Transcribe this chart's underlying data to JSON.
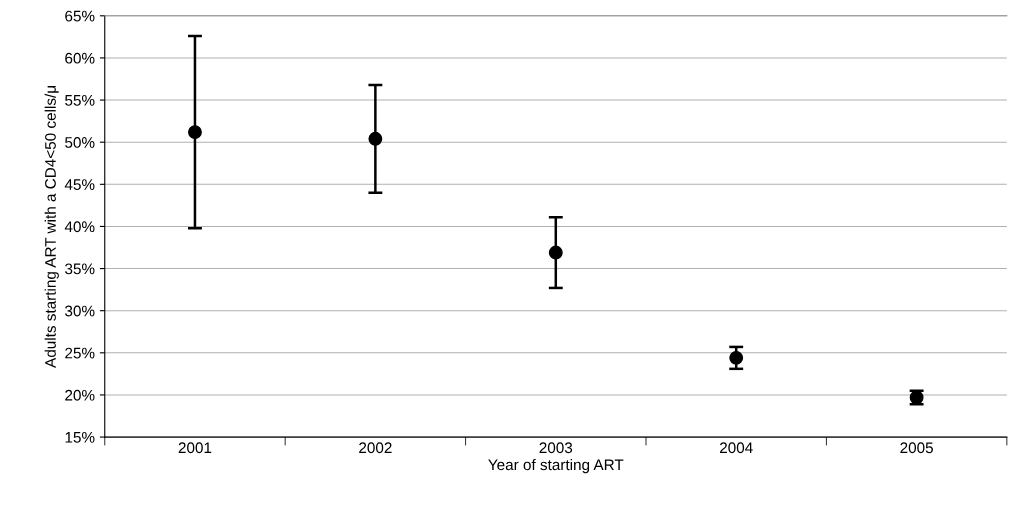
{
  "chart_data": {
    "type": "scatter",
    "xlabel": "Year of starting ART",
    "ylabel": "Adults starting ART with a CD4<50 cells/μ",
    "categories": [
      "2001",
      "2002",
      "2003",
      "2004",
      "2005"
    ],
    "values": [
      51.2,
      50.4,
      36.9,
      24.4,
      19.7
    ],
    "errors": [
      [
        39.8,
        62.6
      ],
      [
        44.0,
        56.8
      ],
      [
        32.7,
        41.1
      ],
      [
        23.1,
        25.7
      ],
      [
        18.9,
        20.5
      ]
    ],
    "color": "#000000",
    "marker": "circle",
    "ylim": [
      15,
      65
    ],
    "yticks": [
      {
        "value": 15,
        "label": "15%"
      },
      {
        "value": 20,
        "label": "20%"
      },
      {
        "value": 25,
        "label": "25%"
      },
      {
        "value": 30,
        "label": "30%"
      },
      {
        "value": 35,
        "label": "35%"
      },
      {
        "value": 40,
        "label": "40%"
      },
      {
        "value": 45,
        "label": "45%"
      },
      {
        "value": 50,
        "label": "50%"
      },
      {
        "value": 55,
        "label": "55%"
      },
      {
        "value": 60,
        "label": "60%"
      },
      {
        "value": 65,
        "label": "65%"
      }
    ],
    "grid": "y",
    "legend": false
  }
}
